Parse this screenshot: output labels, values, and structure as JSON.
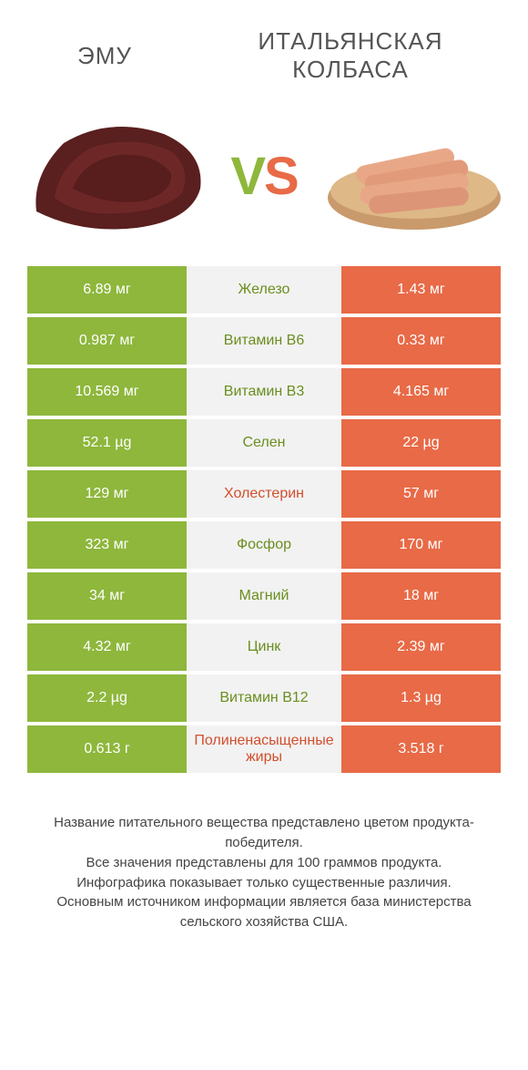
{
  "colors": {
    "green": "#8eb73c",
    "orange": "#e86a47",
    "midBg": "#f2f2f2",
    "midTextGreen": "#6a8e1f",
    "midTextOrange": "#d24e2c",
    "titleText": "#555555"
  },
  "header": {
    "left": "ЭМУ",
    "right": "ИТАЛЬЯНСКАЯ КОЛБАСА",
    "vs_v": "V",
    "vs_s": "S"
  },
  "rows": [
    {
      "left": "6.89 мг",
      "mid": "Железо",
      "right": "1.43 мг",
      "winner": "left"
    },
    {
      "left": "0.987 мг",
      "mid": "Витамин B6",
      "right": "0.33 мг",
      "winner": "left"
    },
    {
      "left": "10.569 мг",
      "mid": "Витамин B3",
      "right": "4.165 мг",
      "winner": "left"
    },
    {
      "left": "52.1 µg",
      "mid": "Селен",
      "right": "22 µg",
      "winner": "left"
    },
    {
      "left": "129 мг",
      "mid": "Холестерин",
      "right": "57 мг",
      "winner": "right"
    },
    {
      "left": "323 мг",
      "mid": "Фосфор",
      "right": "170 мг",
      "winner": "left"
    },
    {
      "left": "34 мг",
      "mid": "Магний",
      "right": "18 мг",
      "winner": "left"
    },
    {
      "left": "4.32 мг",
      "mid": "Цинк",
      "right": "2.39 мг",
      "winner": "left"
    },
    {
      "left": "2.2 µg",
      "mid": "Витамин B12",
      "right": "1.3 µg",
      "winner": "left"
    },
    {
      "left": "0.613 г",
      "mid": "Полиненасыщенные жиры",
      "right": "3.518 г",
      "winner": "right"
    }
  ],
  "footer": {
    "line1": "Название питательного вещества представлено цветом продукта-победителя.",
    "line2": "Все значения представлены для 100 граммов продукта.",
    "line3": "Инфографика показывает только существенные различия.",
    "line4": "Основным источником информации является база министерства сельского хозяйства США."
  },
  "fonts": {
    "title_pt": 26,
    "cell_pt": 16,
    "footer_pt": 15,
    "vs_pt": 58
  }
}
